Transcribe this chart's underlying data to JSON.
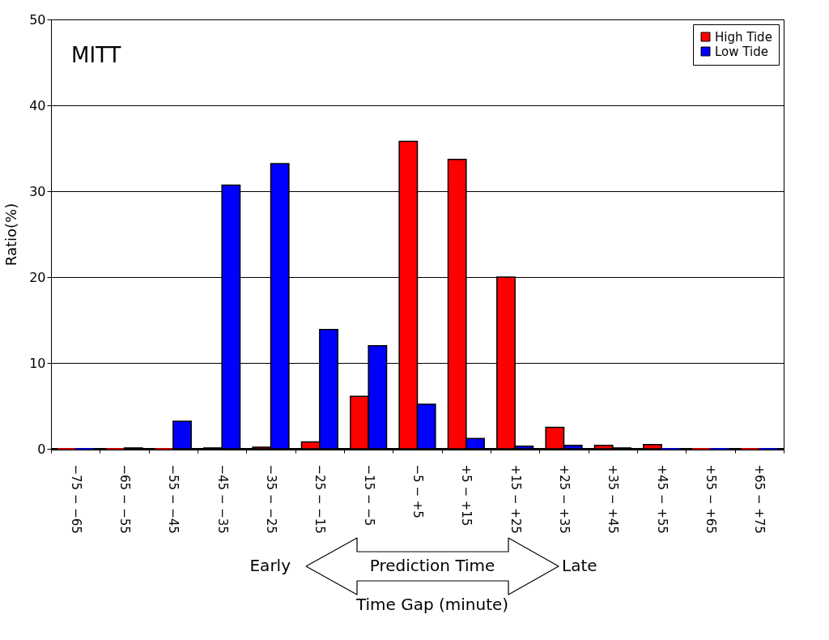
{
  "chart_data": {
    "type": "bar",
    "title": "MITT",
    "xlabel": "Time Gap (minute)",
    "ylabel": "Ratio(%)",
    "categories": [
      "−75 − −65",
      "−65 − −55",
      "−55 − −45",
      "−45 − −35",
      "−35 − −25",
      "−25 − −15",
      "−15 − −5",
      "−5 − +5",
      "+5 − +15",
      "+15 − +25",
      "+25 − +35",
      "+35 − +45",
      "+45 − +55",
      "+55 − +65",
      "+65 − +75"
    ],
    "series": [
      {
        "name": "High Tide",
        "color": "#ff0000",
        "values": [
          0,
          0,
          0,
          0.1,
          0.2,
          0.8,
          6.1,
          35.8,
          33.7,
          20.0,
          2.5,
          0.4,
          0.5,
          0,
          0
        ]
      },
      {
        "name": "Low Tide",
        "color": "#0000ff",
        "values": [
          0,
          0.1,
          3.2,
          30.7,
          33.2,
          13.9,
          12.0,
          5.2,
          1.2,
          0.3,
          0.4,
          0.1,
          0,
          0,
          0
        ]
      }
    ],
    "ylim": [
      0,
      50
    ],
    "yticks": [
      0,
      10,
      20,
      30,
      40,
      50
    ],
    "grid": "y",
    "legend": "top right",
    "annotations": [
      "Early",
      "Prediction Time",
      "Late"
    ]
  }
}
